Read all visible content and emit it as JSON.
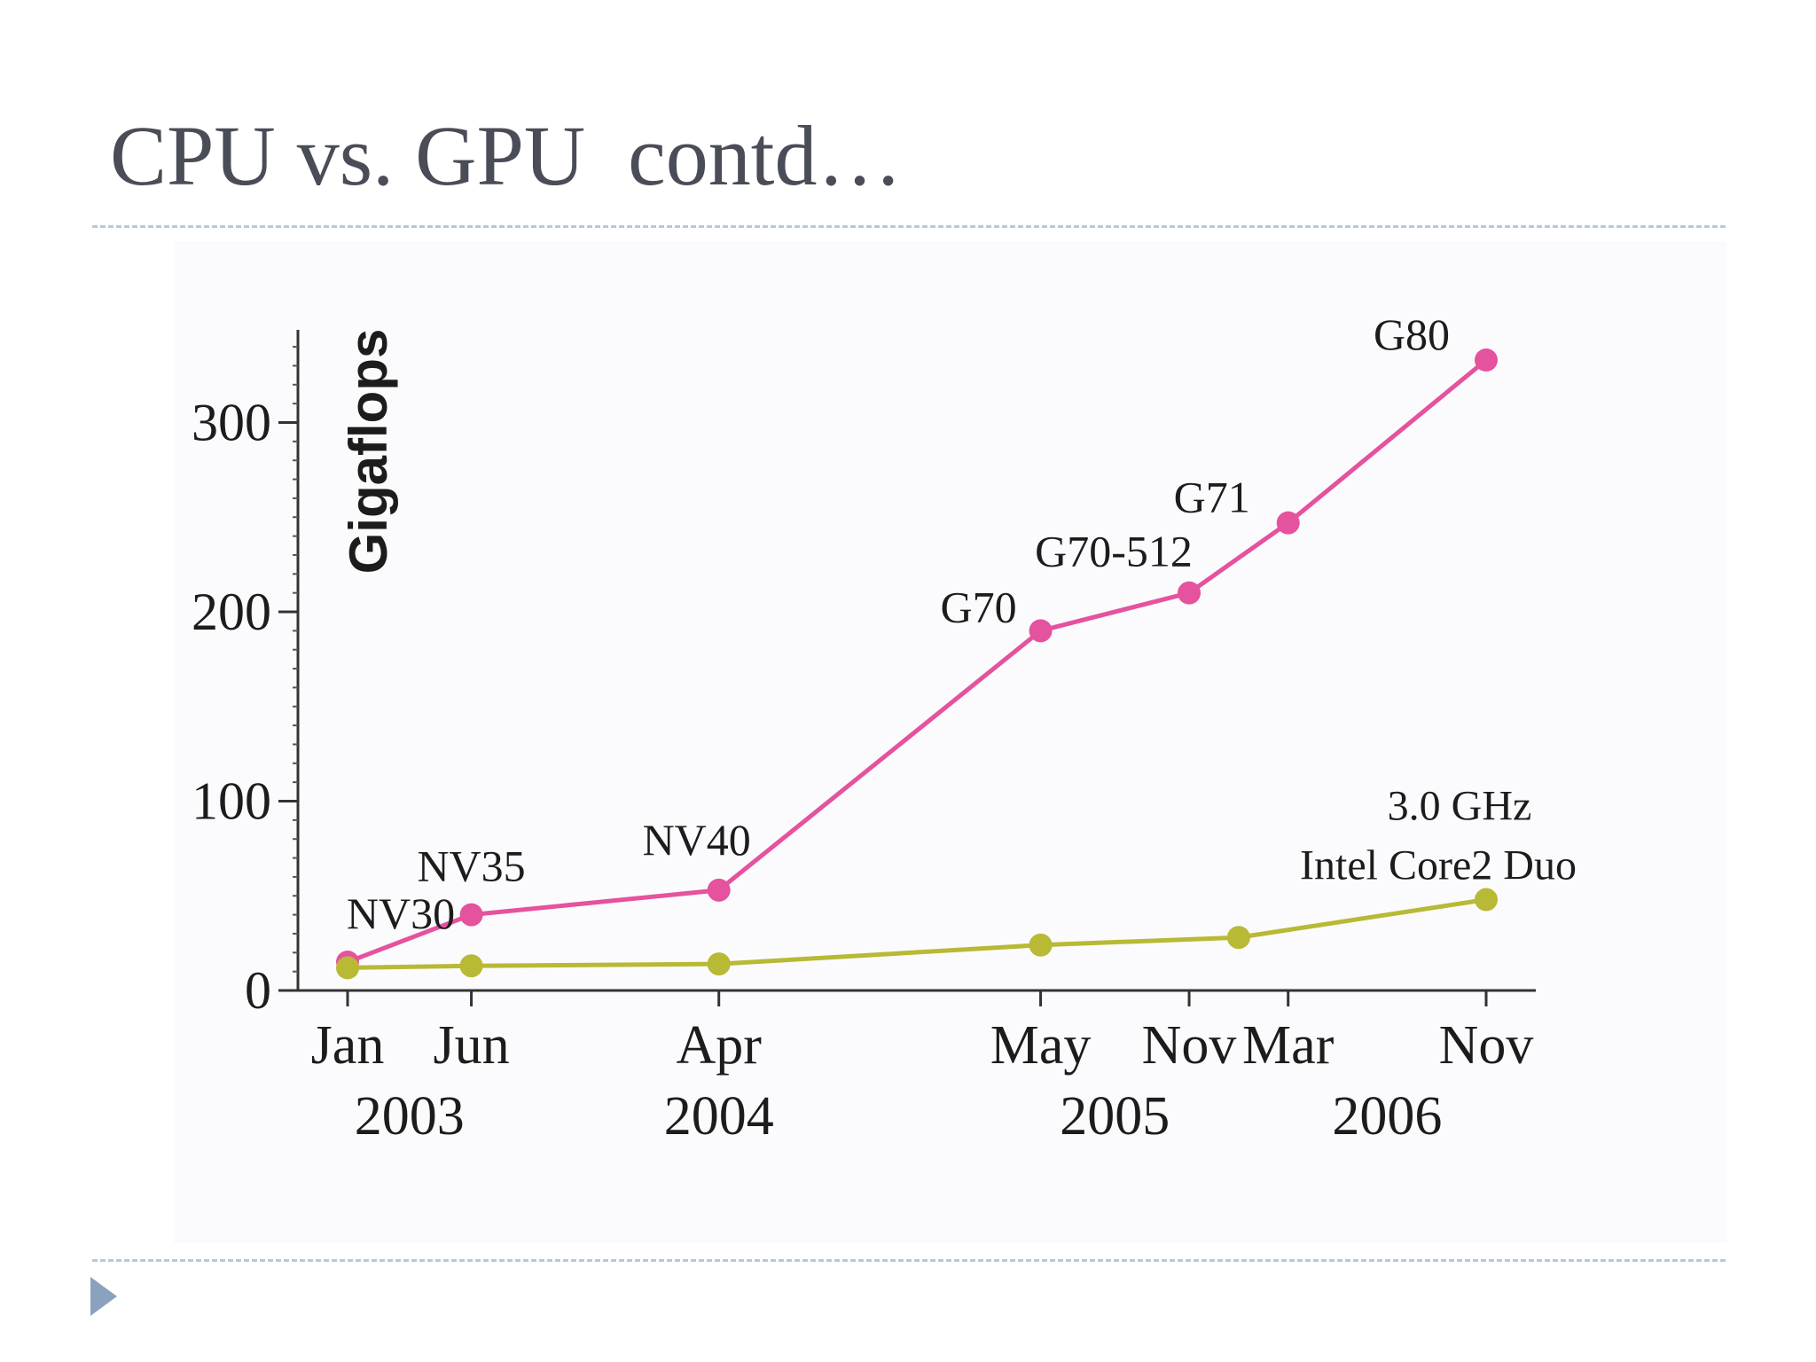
{
  "slide": {
    "title": "CPU vs. GPU  contd…"
  },
  "colors": {
    "gpu_series": "#e5529e",
    "cpu_series": "#b8b935",
    "title_text": "#4a4d57",
    "rule": "#b8c8d8",
    "bullet": "#8aa2bd"
  },
  "icons": {
    "bullet": "triangle-bullet-icon"
  },
  "chart_data": {
    "type": "line",
    "title": "",
    "xlabel": "",
    "ylabel": "Gigaflops",
    "ylim": [
      0,
      350
    ],
    "yticks": [
      0,
      100,
      200,
      300
    ],
    "grid": false,
    "x_ticks": [
      {
        "label": "Jan",
        "date": "2003-01"
      },
      {
        "label": "Jun",
        "date": "2003-06"
      },
      {
        "label": "Apr",
        "date": "2004-04"
      },
      {
        "label": "May",
        "date": "2005-05"
      },
      {
        "label": "Nov",
        "date": "2005-11"
      },
      {
        "label": "Mar",
        "date": "2006-03"
      },
      {
        "label": "Nov",
        "date": "2006-11"
      }
    ],
    "year_labels": [
      "2003",
      "2004",
      "2005",
      "2006"
    ],
    "series": [
      {
        "color": "#e5529e",
        "points": [
          {
            "x": "2003-01",
            "y": 15,
            "label": "NV30"
          },
          {
            "x": "2003-06",
            "y": 40,
            "label": "NV35"
          },
          {
            "x": "2004-04",
            "y": 53,
            "label": "NV40"
          },
          {
            "x": "2005-05",
            "y": 190,
            "label": "G70"
          },
          {
            "x": "2005-11",
            "y": 210,
            "label": "G70-512"
          },
          {
            "x": "2006-03",
            "y": 247,
            "label": "G71"
          },
          {
            "x": "2006-11",
            "y": 333,
            "label": "G80"
          }
        ]
      },
      {
        "color": "#b8b935",
        "points": [
          {
            "x": "2003-01",
            "y": 12
          },
          {
            "x": "2003-06",
            "y": 13
          },
          {
            "x": "2004-04",
            "y": 14
          },
          {
            "x": "2005-05",
            "y": 24
          },
          {
            "x": "2006-01",
            "y": 28
          },
          {
            "x": "2006-11",
            "y": 48
          }
        ],
        "annotation": [
          "3.0 GHz",
          "Intel Core2 Duo"
        ]
      }
    ]
  }
}
